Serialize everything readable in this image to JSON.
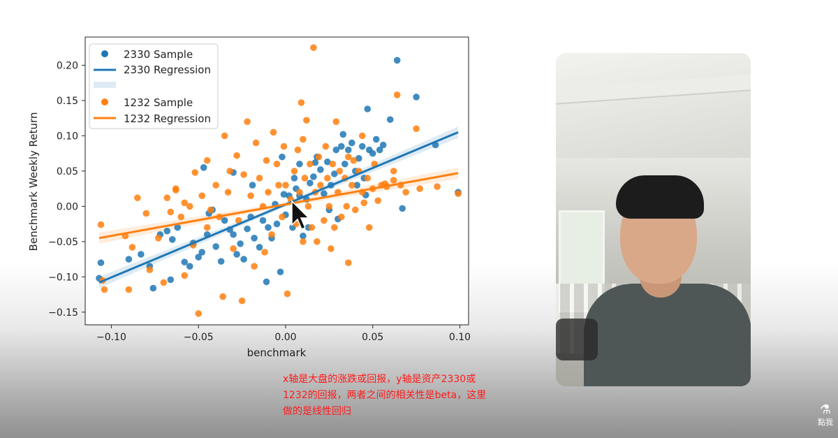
{
  "chart_data": {
    "type": "scatter",
    "xlabel": "benchmark",
    "ylabel": "Benchmark Weekly Return",
    "xlim": [
      -0.115,
      0.105
    ],
    "ylim": [
      -0.168,
      0.24
    ],
    "x_ticks": [
      "−0.10",
      "−0.05",
      "0.00",
      "0.05",
      "0.10"
    ],
    "x_tick_values": [
      -0.1,
      -0.05,
      0.0,
      0.05,
      0.1
    ],
    "y_ticks": [
      "0.20",
      "0.15",
      "0.10",
      "0.05",
      "0.00",
      "−0.05",
      "−0.10",
      "−0.15"
    ],
    "y_tick_values": [
      0.2,
      0.15,
      0.1,
      0.05,
      0.0,
      -0.05,
      -0.1,
      -0.15
    ],
    "legend_position": "top-left",
    "legend": [
      "2330 Sample",
      "2330 Regression",
      "1232 Sample",
      "1232 Regression"
    ],
    "series": [
      {
        "name": "2330 Sample",
        "color": "#1f77b4",
        "points": [
          [
            -0.107,
            -0.102
          ],
          [
            -0.106,
            -0.08
          ],
          [
            -0.09,
            -0.075
          ],
          [
            -0.083,
            -0.068
          ],
          [
            -0.078,
            -0.085
          ],
          [
            -0.076,
            -0.116
          ],
          [
            -0.068,
            -0.035
          ],
          [
            -0.065,
            -0.047
          ],
          [
            -0.066,
            -0.104
          ],
          [
            -0.058,
            -0.079
          ],
          [
            -0.055,
            -0.085
          ],
          [
            -0.053,
            -0.052
          ],
          [
            -0.05,
            -0.072
          ],
          [
            -0.048,
            -0.065
          ],
          [
            -0.045,
            -0.04
          ],
          [
            -0.044,
            -0.01
          ],
          [
            -0.04,
            -0.057
          ],
          [
            -0.037,
            -0.078
          ],
          [
            -0.035,
            -0.02
          ],
          [
            -0.032,
            -0.033
          ],
          [
            -0.03,
            -0.04
          ],
          [
            -0.028,
            -0.068
          ],
          [
            -0.026,
            -0.053
          ],
          [
            -0.024,
            -0.075
          ],
          [
            -0.022,
            -0.032
          ],
          [
            -0.02,
            -0.015
          ],
          [
            -0.018,
            -0.045
          ],
          [
            -0.015,
            -0.058
          ],
          [
            -0.013,
            -0.02
          ],
          [
            -0.011,
            -0.107
          ],
          [
            -0.01,
            -0.03
          ],
          [
            -0.008,
            -0.045
          ],
          [
            -0.006,
            0.003
          ],
          [
            -0.005,
            -0.025
          ],
          [
            -0.003,
            -0.093
          ],
          [
            -0.001,
            0.017
          ],
          [
            0.0,
            -0.012
          ],
          [
            0.002,
            0.015
          ],
          [
            0.004,
            -0.03
          ],
          [
            0.005,
            0.04
          ],
          [
            0.006,
            0.025
          ],
          [
            0.008,
            0.015
          ],
          [
            0.01,
            -0.042
          ],
          [
            0.012,
            0.01
          ],
          [
            0.014,
            0.033
          ],
          [
            0.016,
            0.042
          ],
          [
            0.018,
            0.07
          ],
          [
            0.02,
            0.052
          ],
          [
            0.022,
            0.018
          ],
          [
            0.024,
            0.063
          ],
          [
            0.026,
            0.03
          ],
          [
            0.028,
            0.046
          ],
          [
            0.029,
            0.08
          ],
          [
            0.03,
            -0.018
          ],
          [
            0.032,
            0.085
          ],
          [
            0.033,
            0.102
          ],
          [
            0.034,
            0.06
          ],
          [
            0.036,
            0.08
          ],
          [
            0.038,
            0.09
          ],
          [
            0.04,
            0.05
          ],
          [
            0.042,
            0.068
          ],
          [
            0.044,
            0.085
          ],
          [
            0.045,
            0.04
          ],
          [
            0.046,
            0.016
          ],
          [
            0.048,
            0.08
          ],
          [
            0.05,
            0.075
          ],
          [
            0.052,
            0.095
          ],
          [
            0.054,
            0.08
          ],
          [
            0.056,
            0.087
          ],
          [
            0.06,
            0.123
          ],
          [
            0.064,
            0.207
          ],
          [
            0.067,
            -0.003
          ],
          [
            0.075,
            0.155
          ],
          [
            0.086,
            0.087
          ],
          [
            0.099,
            0.02
          ],
          [
            -0.047,
            0.055
          ],
          [
            -0.03,
            0.048
          ],
          [
            -0.062,
            -0.03
          ],
          [
            -0.072,
            -0.04
          ],
          [
            -0.042,
            -0.005
          ],
          [
            -0.019,
            0.03
          ],
          [
            0.013,
            -0.03
          ],
          [
            0.025,
            -0.005
          ],
          [
            0.041,
            0.03
          ],
          [
            0.047,
            0.138
          ],
          [
            0.017,
            0.062
          ],
          [
            0.008,
            0.06
          ],
          [
            -0.002,
            0.07
          ]
        ]
      },
      {
        "name": "1232 Sample",
        "color": "#ff7f0e",
        "points": [
          [
            -0.106,
            -0.026
          ],
          [
            -0.105,
            -0.105
          ],
          [
            -0.104,
            -0.118
          ],
          [
            -0.092,
            -0.042
          ],
          [
            -0.09,
            -0.118
          ],
          [
            -0.088,
            -0.058
          ],
          [
            -0.085,
            0.012
          ],
          [
            -0.08,
            -0.01
          ],
          [
            -0.078,
            -0.09
          ],
          [
            -0.073,
            -0.045
          ],
          [
            -0.07,
            -0.108
          ],
          [
            -0.068,
            0.012
          ],
          [
            -0.066,
            -0.008
          ],
          [
            -0.063,
            0.023
          ],
          [
            -0.06,
            -0.015
          ],
          [
            -0.058,
            -0.098
          ],
          [
            -0.055,
            0.0
          ],
          [
            -0.053,
            -0.055
          ],
          [
            -0.052,
            0.048
          ],
          [
            -0.05,
            -0.152
          ],
          [
            -0.048,
            0.015
          ],
          [
            -0.045,
            0.065
          ],
          [
            -0.043,
            -0.005
          ],
          [
            -0.04,
            0.03
          ],
          [
            -0.038,
            -0.015
          ],
          [
            -0.036,
            -0.128
          ],
          [
            -0.035,
            0.1
          ],
          [
            -0.033,
            0.02
          ],
          [
            -0.03,
            -0.06
          ],
          [
            -0.028,
            0.072
          ],
          [
            -0.027,
            -0.02
          ],
          [
            -0.025,
            -0.134
          ],
          [
            -0.024,
            0.045
          ],
          [
            -0.022,
            0.12
          ],
          [
            -0.02,
            0.015
          ],
          [
            -0.018,
            -0.085
          ],
          [
            -0.017,
            0.09
          ],
          [
            -0.015,
            0.04
          ],
          [
            -0.013,
            0.0
          ],
          [
            -0.011,
            0.065
          ],
          [
            -0.01,
            0.02
          ],
          [
            -0.008,
            -0.04
          ],
          [
            -0.007,
            0.105
          ],
          [
            -0.005,
            0.06
          ],
          [
            -0.004,
            0.03
          ],
          [
            -0.002,
            -0.015
          ],
          [
            -0.001,
            0.085
          ],
          [
            0.0,
            0.03
          ],
          [
            0.001,
            -0.124
          ],
          [
            0.003,
            0.01
          ],
          [
            0.005,
            0.05
          ],
          [
            0.006,
            -0.025
          ],
          [
            0.007,
            0.08
          ],
          [
            0.008,
            0.02
          ],
          [
            0.009,
            0.147
          ],
          [
            0.01,
            -0.05
          ],
          [
            0.011,
            0.04
          ],
          [
            0.012,
            0.122
          ],
          [
            0.013,
            0.0
          ],
          [
            0.014,
            0.06
          ],
          [
            0.015,
            -0.03
          ],
          [
            0.016,
            0.225
          ],
          [
            0.017,
            0.02
          ],
          [
            0.018,
            -0.05
          ],
          [
            0.019,
            0.07
          ],
          [
            0.02,
            0.03
          ],
          [
            0.022,
            -0.02
          ],
          [
            0.023,
            0.085
          ],
          [
            0.024,
            0.04
          ],
          [
            0.025,
            0.0
          ],
          [
            0.027,
            0.06
          ],
          [
            0.028,
            -0.03
          ],
          [
            0.029,
            0.12
          ],
          [
            0.03,
            0.02
          ],
          [
            0.031,
            0.05
          ],
          [
            0.032,
            -0.015
          ],
          [
            0.034,
            0.04
          ],
          [
            0.035,
            0.0
          ],
          [
            0.036,
            -0.08
          ],
          [
            0.038,
            0.03
          ],
          [
            0.039,
            0.065
          ],
          [
            0.04,
            -0.005
          ],
          [
            0.042,
            0.05
          ],
          [
            0.044,
            0.02
          ],
          [
            0.045,
            0.005
          ],
          [
            0.047,
            0.04
          ],
          [
            0.048,
            -0.03
          ],
          [
            0.05,
            0.025
          ],
          [
            0.051,
            0.06
          ],
          [
            0.053,
            0.008
          ],
          [
            0.055,
            0.03
          ],
          [
            0.057,
            0.032
          ],
          [
            0.058,
            0.028
          ],
          [
            0.062,
            0.05
          ],
          [
            0.064,
            0.158
          ],
          [
            0.066,
            0.03
          ],
          [
            0.069,
            0.02
          ],
          [
            0.075,
            0.11
          ],
          [
            0.077,
            0.025
          ],
          [
            0.087,
            0.028
          ],
          [
            0.099,
            0.018
          ],
          [
            -0.063,
            0.025
          ],
          [
            -0.058,
            0.005
          ],
          [
            -0.045,
            -0.03
          ],
          [
            -0.032,
            0.05
          ],
          [
            -0.012,
            -0.065
          ],
          [
            0.01,
            0.095
          ],
          [
            0.026,
            -0.06
          ],
          [
            0.044,
            0.1
          ],
          [
            0.036,
            0.07
          ],
          [
            0.062,
            0.037
          ]
        ]
      }
    ],
    "regressions": [
      {
        "name": "2330 Regression",
        "color": "#1f77b4",
        "x": [
          -0.107,
          0.099
        ],
        "y": [
          -0.108,
          0.105
        ]
      },
      {
        "name": "1232 Regression",
        "color": "#ff7f0e",
        "x": [
          -0.107,
          0.099
        ],
        "y": [
          -0.045,
          0.047
        ]
      }
    ]
  },
  "caption": {
    "line1": "x轴是大盘的涨跌或回报，y轴是资产2330或",
    "line2": "1232的回报，两者之间的相关性是beta，这里",
    "line3": "做的是线性回归"
  },
  "watermark": {
    "label": "點我"
  }
}
